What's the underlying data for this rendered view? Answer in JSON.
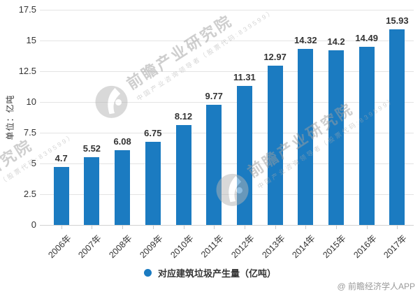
{
  "chart_data": {
    "type": "bar",
    "title": "",
    "categories": [
      "2006年",
      "2007年",
      "2008年",
      "2009年",
      "2010年",
      "2011年",
      "2012年",
      "2013年",
      "2014年",
      "2015年",
      "2016年",
      "2017年"
    ],
    "values": [
      4.7,
      5.52,
      6.08,
      6.75,
      8.12,
      9.77,
      11.31,
      12.97,
      14.32,
      14.2,
      14.49,
      15.93
    ],
    "value_labels": [
      "4.7",
      "5.52",
      "6.08",
      "6.75",
      "8.12",
      "9.77",
      "11.31",
      "12.97",
      "14.32",
      "14.2",
      "14.49",
      "15.93"
    ],
    "ylabel": "单位：亿吨",
    "ylim": [
      0,
      17.5
    ],
    "yticks": [
      0,
      2.5,
      5,
      7.5,
      10,
      12.5,
      15,
      17.5
    ],
    "ytick_labels": [
      "0",
      "2.5",
      "5",
      "7.5",
      "10",
      "12.5",
      "15",
      "17.5"
    ],
    "grid": true,
    "legend_position": "bottom",
    "legend": {
      "label": "对应建筑垃圾产生量（亿吨）",
      "marker": "circle-icon"
    },
    "bar_color": "#1b7bc1"
  },
  "watermark": {
    "brand": "前瞻产业研究院",
    "tagline": "中国产业咨询领导者（股票代码:839599）",
    "logo": "qianzhan-logo-icon"
  },
  "credit": "@ 前瞻经济学人APP"
}
